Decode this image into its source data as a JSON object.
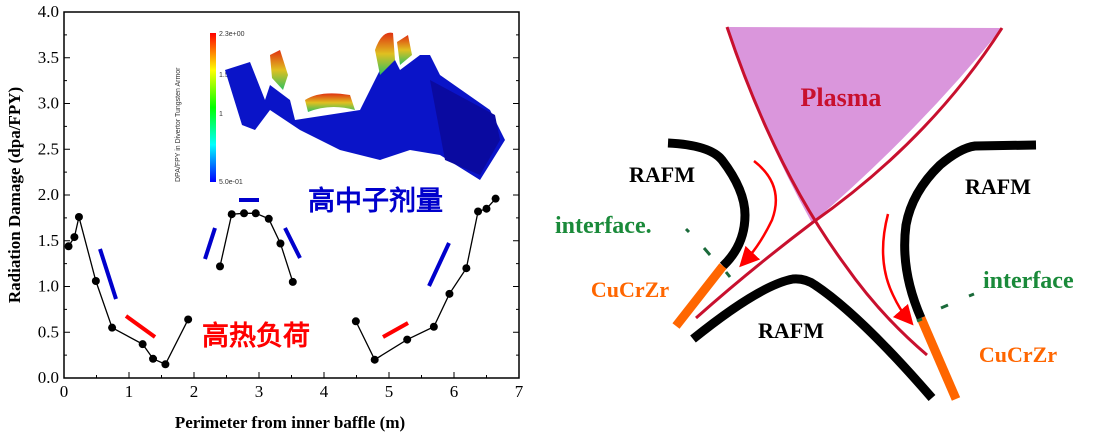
{
  "chart_data": {
    "type": "line",
    "title": "",
    "xlabel": "Perimeter from inner baffle (m)",
    "ylabel": "Radiation Damage (dpa/FPY)",
    "xlim": [
      0,
      7
    ],
    "ylim": [
      0,
      4.0
    ],
    "xticks": [
      "0",
      "1",
      "2",
      "3",
      "4",
      "5",
      "6",
      "7"
    ],
    "yticks": [
      "0.0",
      "0.5",
      "1.0",
      "1.5",
      "2.0",
      "2.5",
      "3.0",
      "3.5",
      "4.0"
    ],
    "grid": false,
    "series": [
      {
        "color": "#000000",
        "marker": "circle",
        "segments": [
          [
            [
              0.07,
              1.44
            ],
            [
              0.16,
              1.54
            ],
            [
              0.23,
              1.76
            ],
            [
              0.49,
              1.06
            ],
            [
              0.74,
              0.55
            ],
            [
              1.21,
              0.37
            ],
            [
              1.37,
              0.21
            ],
            [
              1.56,
              0.15
            ],
            [
              1.91,
              0.64
            ]
          ],
          [
            [
              2.4,
              1.22
            ],
            [
              2.58,
              1.79
            ],
            [
              2.77,
              1.8
            ],
            [
              2.95,
              1.8
            ],
            [
              3.15,
              1.74
            ],
            [
              3.33,
              1.47
            ],
            [
              3.52,
              1.05
            ]
          ],
          [
            [
              4.49,
              0.62
            ],
            [
              4.78,
              0.2
            ],
            [
              5.28,
              0.42
            ],
            [
              5.69,
              0.56
            ],
            [
              5.93,
              0.92
            ],
            [
              6.19,
              1.2
            ],
            [
              6.37,
              1.82
            ],
            [
              6.5,
              1.85
            ],
            [
              6.64,
              1.96
            ]
          ]
        ]
      }
    ],
    "annotations": [
      {
        "text": "高中子剂量",
        "color": "#0000cc"
      },
      {
        "text": "高热负荷",
        "color": "#ff0000"
      }
    ],
    "inset": {
      "colorbar_title": "DPA/FPY in Divertor Tungsten Armor",
      "colorbar_ticks": [
        "2.3e+00",
        "1.5",
        "1",
        "5.0e-01"
      ]
    }
  },
  "diagram": {
    "plasma_label": "Plasma",
    "rafm_left": "RAFM",
    "rafm_right": "RAFM",
    "rafm_bottom": "RAFM",
    "interface_left": "interface.",
    "interface_right": "interface",
    "cucrzr_left": "CuCrZr",
    "cucrzr_right": "CuCrZr",
    "colors": {
      "plasma": "#da96dc",
      "separatrix": "#c8102e",
      "rafm": "#000000",
      "cucrzr": "#ff6600",
      "interface": "#1a8a3a",
      "arrow": "#ff0000"
    }
  }
}
